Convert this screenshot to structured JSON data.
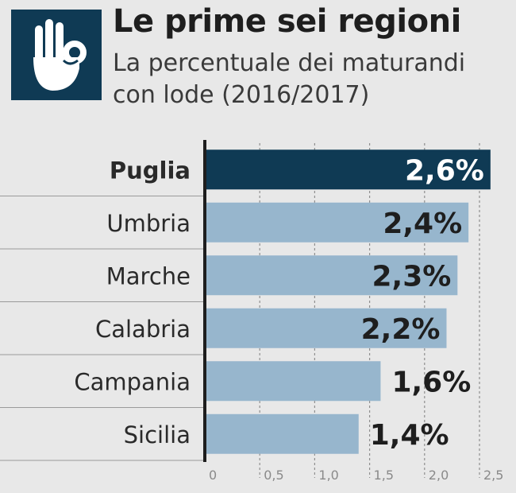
{
  "header": {
    "title": "Le prime sei regioni",
    "subtitle": "La percentuale dei maturandi con lode (2016/2017)",
    "icon": "ok-hand-gesture-icon"
  },
  "colors": {
    "highlight_bar": "#0f3a54",
    "bar": "#97b6cd",
    "background": "#e8e8e8",
    "icon_bg": "#0f3a54"
  },
  "chart_data": {
    "type": "bar",
    "orientation": "horizontal",
    "title": "Le prime sei regioni",
    "subtitle": "La percentuale dei maturandi con lode (2016/2017)",
    "categories": [
      "Puglia",
      "Umbria",
      "Marche",
      "Calabria",
      "Campania",
      "Sicilia"
    ],
    "values": [
      2.6,
      2.4,
      2.3,
      2.2,
      1.6,
      1.4
    ],
    "value_labels": [
      "2,6%",
      "2,4%",
      "2,3%",
      "2,2%",
      "1,6%",
      "1,4%"
    ],
    "highlight_index": 0,
    "xlim": [
      0,
      2.5
    ],
    "xticks": [
      0,
      0.5,
      1.0,
      1.5,
      2.0,
      2.5
    ],
    "xtick_labels": [
      "0",
      "0,5",
      "1,0",
      "1,5",
      "2,0",
      "2,5"
    ],
    "grid": "vertical dashed",
    "legend": "none"
  }
}
